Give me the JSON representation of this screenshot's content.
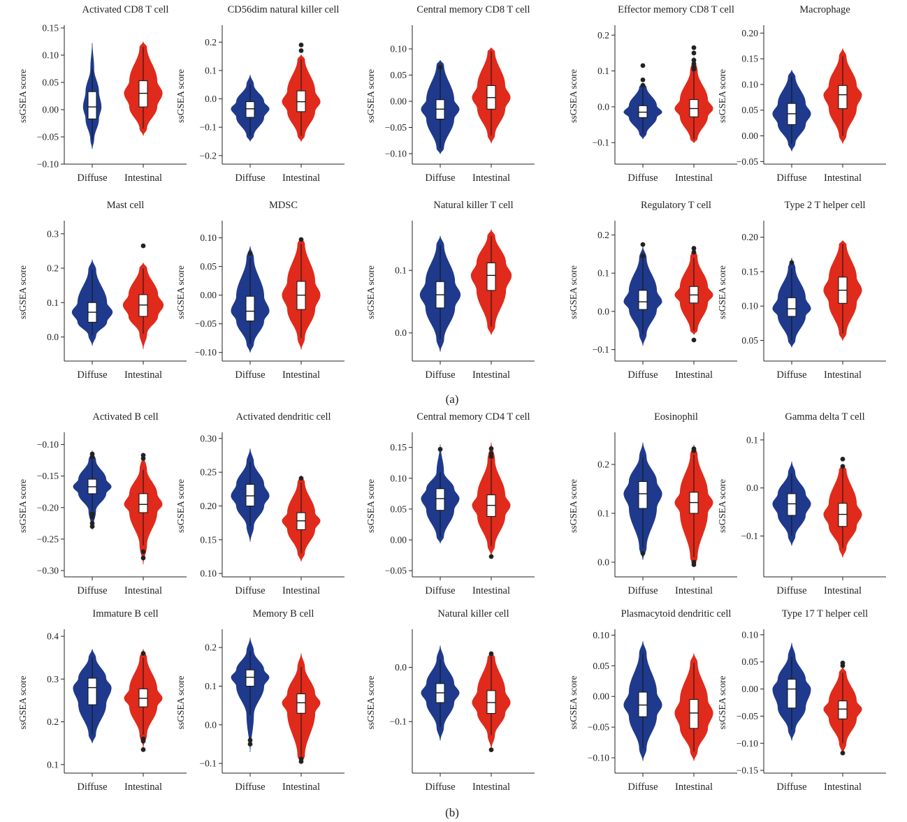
{
  "figure": {
    "panel_labels": [
      "(a)",
      "(b)"
    ],
    "colors": {
      "diffuse": "#1f3a8c",
      "intestinal": "#e02a1b",
      "box": "#ffffff",
      "axis": "#222222"
    }
  },
  "chart_data": [
    {
      "type": "violin",
      "title": "Activated CD8 T cell",
      "ylabel": "ssGSEA score",
      "categories": [
        "Diffuse",
        "Intestinal"
      ],
      "ylim": [
        -0.1,
        0.15
      ],
      "yticks": [
        -0.1,
        -0.05,
        0.0,
        0.05,
        0.1,
        0.15
      ],
      "ytick_labels": [
        "−0.10",
        "−0.05",
        "0.00",
        "0.05",
        "0.10",
        "0.15"
      ],
      "series": [
        {
          "min": -0.055,
          "q1": -0.017,
          "median": 0.005,
          "q3": 0.033,
          "max": 0.075,
          "vmin": -0.072,
          "vmax": 0.122,
          "wmax": 0.4,
          "outliers": []
        },
        {
          "min": -0.035,
          "q1": 0.005,
          "median": 0.03,
          "q3": 0.053,
          "max": 0.115,
          "vmin": -0.047,
          "vmax": 0.124,
          "wmax": 0.85,
          "outliers": []
        }
      ]
    },
    {
      "type": "violin",
      "title": "CD56dim natural killer cell",
      "ylabel": "ssGSEA score",
      "categories": [
        "Diffuse",
        "Intestinal"
      ],
      "ylim": [
        -0.23,
        0.25
      ],
      "yticks": [
        -0.2,
        -0.1,
        0.0,
        0.1,
        0.2
      ],
      "ytick_labels": [
        "−0.2",
        "−0.1",
        "0.0",
        "0.1",
        "0.2"
      ],
      "series": [
        {
          "min": -0.13,
          "q1": -0.065,
          "median": -0.035,
          "q3": -0.01,
          "max": 0.05,
          "vmin": -0.15,
          "vmax": 0.085,
          "wmax": 0.85,
          "outliers": []
        },
        {
          "min": -0.13,
          "q1": -0.045,
          "median": -0.01,
          "q3": 0.028,
          "max": 0.14,
          "vmin": -0.15,
          "vmax": 0.155,
          "wmax": 0.85,
          "outliers": [
            0.17,
            0.19
          ]
        }
      ]
    },
    {
      "type": "violin",
      "title": "Central memory CD8 T cell",
      "ylabel": "ssGSEA score",
      "categories": [
        "Diffuse",
        "Intestinal"
      ],
      "ylim": [
        -0.12,
        0.14
      ],
      "yticks": [
        -0.1,
        -0.05,
        0.0,
        0.05,
        0.1
      ],
      "ytick_labels": [
        "−0.10",
        "−0.05",
        "0.00",
        "0.05",
        "0.10"
      ],
      "series": [
        {
          "min": -0.09,
          "q1": -0.034,
          "median": -0.015,
          "q3": 0.003,
          "max": 0.07,
          "vmin": -0.1,
          "vmax": 0.078,
          "wmax": 0.85,
          "outliers": [
            0.065
          ]
        },
        {
          "min": -0.065,
          "q1": -0.015,
          "median": 0.007,
          "q3": 0.03,
          "max": 0.095,
          "vmin": -0.08,
          "vmax": 0.102,
          "wmax": 0.85,
          "outliers": []
        }
      ]
    },
    {
      "type": "violin",
      "title": "Effector memory CD8 T cell",
      "ylabel": "ssGSEA score",
      "categories": [
        "Diffuse",
        "Intestinal"
      ],
      "ylim": [
        -0.16,
        0.22
      ],
      "yticks": [
        -0.1,
        0.0,
        0.1,
        0.2
      ],
      "ytick_labels": [
        "−0.1",
        "0.0",
        "0.1",
        "0.2"
      ],
      "series": [
        {
          "min": -0.075,
          "q1": -0.03,
          "median": -0.015,
          "q3": 0.003,
          "max": 0.055,
          "vmin": -0.09,
          "vmax": 0.065,
          "wmax": 0.85,
          "outliers": [
            0.06,
            0.075,
            0.115
          ]
        },
        {
          "min": -0.09,
          "q1": -0.028,
          "median": -0.005,
          "q3": 0.02,
          "max": 0.1,
          "vmin": -0.1,
          "vmax": 0.14,
          "wmax": 0.85,
          "outliers": [
            0.105,
            0.11,
            0.12,
            0.13,
            0.15,
            0.165
          ]
        }
      ]
    },
    {
      "type": "violin",
      "title": "Macrophage",
      "ylabel": "ssGSEA score",
      "categories": [
        "Diffuse",
        "Intestinal"
      ],
      "ylim": [
        -0.055,
        0.21
      ],
      "yticks": [
        -0.05,
        0.0,
        0.05,
        0.1,
        0.15,
        0.2
      ],
      "ytick_labels": [
        "−0.05",
        "0.00",
        "0.05",
        "0.10",
        "0.15",
        "0.20"
      ],
      "series": [
        {
          "min": -0.015,
          "q1": 0.022,
          "median": 0.043,
          "q3": 0.063,
          "max": 0.115,
          "vmin": -0.03,
          "vmax": 0.128,
          "wmax": 0.85,
          "outliers": []
        },
        {
          "min": 0.0,
          "q1": 0.053,
          "median": 0.08,
          "q3": 0.098,
          "max": 0.155,
          "vmin": -0.015,
          "vmax": 0.17,
          "wmax": 0.85,
          "outliers": []
        }
      ]
    },
    {
      "type": "violin",
      "title": "Mast cell",
      "ylabel": "ssGSEA score",
      "categories": [
        "Diffuse",
        "Intestinal"
      ],
      "ylim": [
        -0.07,
        0.33
      ],
      "yticks": [
        0.0,
        0.1,
        0.2,
        0.3
      ],
      "ytick_labels": [
        "0.0",
        "0.1",
        "0.2",
        "0.3"
      ],
      "series": [
        {
          "min": 0.005,
          "q1": 0.043,
          "median": 0.072,
          "q3": 0.1,
          "max": 0.195,
          "vmin": -0.025,
          "vmax": 0.225,
          "wmax": 0.9,
          "outliers": []
        },
        {
          "min": 0.01,
          "q1": 0.06,
          "median": 0.093,
          "q3": 0.123,
          "max": 0.2,
          "vmin": -0.035,
          "vmax": 0.215,
          "wmax": 0.9,
          "outliers": [
            0.265
          ]
        }
      ]
    },
    {
      "type": "violin",
      "title": "MDSC",
      "ylabel": "ssGSEA score",
      "categories": [
        "Diffuse",
        "Intestinal"
      ],
      "ylim": [
        -0.115,
        0.125
      ],
      "yticks": [
        -0.1,
        -0.05,
        0.0,
        0.05,
        0.1
      ],
      "ytick_labels": [
        "−0.10",
        "−0.05",
        "0.00",
        "0.05",
        "0.10"
      ],
      "series": [
        {
          "min": -0.085,
          "q1": -0.045,
          "median": -0.028,
          "q3": -0.002,
          "max": 0.065,
          "vmin": -0.1,
          "vmax": 0.085,
          "wmax": 0.85,
          "outliers": [
            0.073
          ]
        },
        {
          "min": -0.075,
          "q1": -0.025,
          "median": 0.0,
          "q3": 0.024,
          "max": 0.09,
          "vmin": -0.095,
          "vmax": 0.1,
          "wmax": 0.85,
          "outliers": [
            0.097
          ]
        }
      ]
    },
    {
      "type": "violin",
      "title": "Natural killer T cell",
      "ylabel": "ssGSEA score",
      "categories": [
        "Diffuse",
        "Intestinal"
      ],
      "ylim": [
        -0.045,
        0.175
      ],
      "yticks": [
        0.0,
        0.1
      ],
      "ytick_labels": [
        "0.0",
        "0.1"
      ],
      "series": [
        {
          "min": -0.01,
          "q1": 0.04,
          "median": 0.061,
          "q3": 0.082,
          "max": 0.14,
          "vmin": -0.03,
          "vmax": 0.155,
          "wmax": 0.9,
          "outliers": []
        },
        {
          "min": 0.01,
          "q1": 0.068,
          "median": 0.092,
          "q3": 0.112,
          "max": 0.155,
          "vmin": -0.003,
          "vmax": 0.165,
          "wmax": 0.9,
          "outliers": []
        }
      ]
    },
    {
      "type": "violin",
      "title": "Regulatory T cell",
      "ylabel": "ssGSEA score",
      "categories": [
        "Diffuse",
        "Intestinal"
      ],
      "ylim": [
        -0.13,
        0.23
      ],
      "yticks": [
        -0.1,
        0.0,
        0.1,
        0.2
      ],
      "ytick_labels": [
        "−0.1",
        "0.0",
        "0.1",
        "0.2"
      ],
      "series": [
        {
          "min": -0.06,
          "q1": 0.005,
          "median": 0.025,
          "q3": 0.055,
          "max": 0.14,
          "vmin": -0.09,
          "vmax": 0.17,
          "wmax": 0.85,
          "outliers": [
            0.145,
            0.175
          ]
        },
        {
          "min": -0.05,
          "q1": 0.022,
          "median": 0.043,
          "q3": 0.065,
          "max": 0.14,
          "vmin": -0.06,
          "vmax": 0.17,
          "wmax": 0.85,
          "outliers": [
            0.155,
            0.165,
            -0.075
          ]
        }
      ]
    },
    {
      "type": "violin",
      "title": "Type 2 T helper cell",
      "ylabel": "ssGSEA score",
      "categories": [
        "Diffuse",
        "Intestinal"
      ],
      "ylim": [
        0.02,
        0.22
      ],
      "yticks": [
        0.05,
        0.1,
        0.15,
        0.2
      ],
      "ytick_labels": [
        "0.05",
        "0.10",
        "0.15",
        "0.20"
      ],
      "series": [
        {
          "min": 0.05,
          "q1": 0.085,
          "median": 0.096,
          "q3": 0.112,
          "max": 0.155,
          "vmin": 0.04,
          "vmax": 0.17,
          "wmax": 0.85,
          "outliers": [
            0.163
          ]
        },
        {
          "min": 0.06,
          "q1": 0.104,
          "median": 0.123,
          "q3": 0.142,
          "max": 0.19,
          "vmin": 0.05,
          "vmax": 0.195,
          "wmax": 0.85,
          "outliers": []
        }
      ]
    },
    {
      "type": "violin",
      "title": "Activated B cell",
      "ylabel": "ssGSEA score",
      "categories": [
        "Diffuse",
        "Intestinal"
      ],
      "ylim": [
        -0.31,
        -0.085
      ],
      "yticks": [
        -0.3,
        -0.25,
        -0.2,
        -0.15,
        -0.1
      ],
      "ytick_labels": [
        "−0.30",
        "−0.25",
        "−0.20",
        "−0.15",
        "−0.10"
      ],
      "series": [
        {
          "min": -0.205,
          "q1": -0.178,
          "median": -0.167,
          "q3": -0.155,
          "max": -0.125,
          "vmin": -0.235,
          "vmax": -0.11,
          "wmax": 0.85,
          "outliers": [
            -0.115,
            -0.12,
            -0.21,
            -0.215,
            -0.225,
            -0.23
          ]
        },
        {
          "min": -0.26,
          "q1": -0.208,
          "median": -0.195,
          "q3": -0.178,
          "max": -0.14,
          "vmin": -0.29,
          "vmax": -0.115,
          "wmax": 0.85,
          "outliers": [
            -0.117,
            -0.122,
            -0.27,
            -0.28
          ]
        }
      ]
    },
    {
      "type": "violin",
      "title": "Activated dendritic cell",
      "ylabel": "ssGSEA score",
      "categories": [
        "Diffuse",
        "Intestinal"
      ],
      "ylim": [
        0.095,
        0.305
      ],
      "yticks": [
        0.1,
        0.15,
        0.2,
        0.25,
        0.3
      ],
      "ytick_labels": [
        "0.10",
        "0.15",
        "0.20",
        "0.25",
        "0.30"
      ],
      "series": [
        {
          "min": 0.17,
          "q1": 0.2,
          "median": 0.215,
          "q3": 0.232,
          "max": 0.265,
          "vmin": 0.147,
          "vmax": 0.285,
          "wmax": 0.85,
          "outliers": []
        },
        {
          "min": 0.13,
          "q1": 0.165,
          "median": 0.178,
          "q3": 0.19,
          "max": 0.235,
          "vmin": 0.118,
          "vmax": 0.245,
          "wmax": 0.85,
          "outliers": [
            0.241
          ]
        }
      ]
    },
    {
      "type": "violin",
      "title": "Central memory CD4 T cell",
      "ylabel": "ssGSEA score",
      "categories": [
        "Diffuse",
        "Intestinal"
      ],
      "ylim": [
        -0.06,
        0.17
      ],
      "yticks": [
        -0.05,
        0.0,
        0.05,
        0.1,
        0.15
      ],
      "ytick_labels": [
        "−0.05",
        "0.00",
        "0.05",
        "0.10",
        "0.15"
      ],
      "series": [
        {
          "min": 0.005,
          "q1": 0.048,
          "median": 0.067,
          "q3": 0.083,
          "max": 0.11,
          "vmin": -0.005,
          "vmax": 0.155,
          "wmax": 0.85,
          "outliers": [
            0.147
          ]
        },
        {
          "min": -0.01,
          "q1": 0.038,
          "median": 0.056,
          "q3": 0.073,
          "max": 0.13,
          "vmin": -0.025,
          "vmax": 0.158,
          "wmax": 0.85,
          "outliers": [
            0.135,
            0.14,
            0.148,
            -0.027
          ]
        }
      ]
    },
    {
      "type": "violin",
      "title": "Eosinophil",
      "ylabel": "ssGSEA score",
      "categories": [
        "Diffuse",
        "Intestinal"
      ],
      "ylim": [
        -0.03,
        0.26
      ],
      "yticks": [
        0.0,
        0.1,
        0.2
      ],
      "ytick_labels": [
        "0.0",
        "0.1",
        "0.2"
      ],
      "series": [
        {
          "min": 0.03,
          "q1": 0.11,
          "median": 0.14,
          "q3": 0.165,
          "max": 0.215,
          "vmin": 0.005,
          "vmax": 0.245,
          "wmax": 0.85,
          "outliers": [
            0.018
          ]
        },
        {
          "min": 0.01,
          "q1": 0.1,
          "median": 0.122,
          "q3": 0.143,
          "max": 0.22,
          "vmin": -0.01,
          "vmax": 0.24,
          "wmax": 0.85,
          "outliers": [
            0.228,
            0.232,
            0.0,
            -0.005
          ]
        }
      ]
    },
    {
      "type": "violin",
      "title": "Gamma delta T cell",
      "ylabel": "ssGSEA score",
      "categories": [
        "Diffuse",
        "Intestinal"
      ],
      "ylim": [
        -0.185,
        0.11
      ],
      "yticks": [
        -0.1,
        0.0,
        0.1
      ],
      "ytick_labels": [
        "−0.1",
        "0.0",
        "0.1"
      ],
      "series": [
        {
          "min": -0.1,
          "q1": -0.057,
          "median": -0.033,
          "q3": -0.012,
          "max": 0.03,
          "vmin": -0.12,
          "vmax": 0.055,
          "wmax": 0.85,
          "outliers": []
        },
        {
          "min": -0.125,
          "q1": -0.08,
          "median": -0.055,
          "q3": -0.032,
          "max": 0.04,
          "vmin": -0.145,
          "vmax": 0.045,
          "wmax": 0.85,
          "outliers": [
            0.045,
            0.06
          ]
        }
      ]
    },
    {
      "type": "violin",
      "title": "Immature B cell",
      "ylabel": "ssGSEA score",
      "categories": [
        "Diffuse",
        "Intestinal"
      ],
      "ylim": [
        0.08,
        0.41
      ],
      "yticks": [
        0.1,
        0.2,
        0.3,
        0.4
      ],
      "ytick_labels": [
        "0.1",
        "0.2",
        "0.3",
        "0.4"
      ],
      "series": [
        {
          "min": 0.17,
          "q1": 0.24,
          "median": 0.28,
          "q3": 0.302,
          "max": 0.35,
          "vmin": 0.15,
          "vmax": 0.37,
          "wmax": 0.85,
          "outliers": []
        },
        {
          "min": 0.17,
          "q1": 0.235,
          "median": 0.255,
          "q3": 0.277,
          "max": 0.35,
          "vmin": 0.14,
          "vmax": 0.37,
          "wmax": 0.85,
          "outliers": [
            0.36,
            0.16,
            0.155,
            0.135
          ]
        }
      ]
    },
    {
      "type": "violin",
      "title": "Memory B cell",
      "ylabel": "ssGSEA score",
      "categories": [
        "Diffuse",
        "Intestinal"
      ],
      "ylim": [
        -0.125,
        0.24
      ],
      "yticks": [
        -0.1,
        0.0,
        0.1,
        0.2
      ],
      "ytick_labels": [
        "−0.1",
        "0.0",
        "0.1",
        "0.2"
      ],
      "series": [
        {
          "min": 0.025,
          "q1": 0.1,
          "median": 0.123,
          "q3": 0.142,
          "max": 0.19,
          "vmin": -0.07,
          "vmax": 0.225,
          "wmax": 0.85,
          "outliers": [
            -0.04,
            -0.05
          ]
        },
        {
          "min": -0.08,
          "q1": 0.03,
          "median": 0.057,
          "q3": 0.08,
          "max": 0.15,
          "vmin": -0.1,
          "vmax": 0.185,
          "wmax": 0.85,
          "outliers": [
            -0.088,
            -0.095
          ]
        }
      ]
    },
    {
      "type": "violin",
      "title": "Natural killer cell",
      "ylabel": "ssGSEA score",
      "categories": [
        "Diffuse",
        "Intestinal"
      ],
      "ylim": [
        -0.195,
        0.065
      ],
      "yticks": [
        -0.1,
        0.0
      ],
      "ytick_labels": [
        "−0.1",
        "0.0"
      ],
      "series": [
        {
          "min": -0.11,
          "q1": -0.065,
          "median": -0.047,
          "q3": -0.03,
          "max": 0.015,
          "vmin": -0.135,
          "vmax": 0.04,
          "wmax": 0.85,
          "outliers": []
        },
        {
          "min": -0.125,
          "q1": -0.085,
          "median": -0.065,
          "q3": -0.043,
          "max": 0.02,
          "vmin": -0.15,
          "vmax": 0.025,
          "wmax": 0.85,
          "outliers": [
            0.025,
            -0.152
          ]
        }
      ]
    },
    {
      "type": "violin",
      "title": "Plasmacytoid dendritic cell",
      "ylabel": "ssGSEA score",
      "categories": [
        "Diffuse",
        "Intestinal"
      ],
      "ylim": [
        -0.125,
        0.105
      ],
      "yticks": [
        -0.1,
        -0.05,
        0.0,
        0.05,
        0.1
      ],
      "ytick_labels": [
        "−0.10",
        "−0.05",
        "0.00",
        "0.05",
        "0.10"
      ],
      "series": [
        {
          "min": -0.085,
          "q1": -0.033,
          "median": -0.014,
          "q3": 0.007,
          "max": 0.07,
          "vmin": -0.105,
          "vmax": 0.09,
          "wmax": 0.85,
          "outliers": []
        },
        {
          "min": -0.09,
          "q1": -0.052,
          "median": -0.027,
          "q3": -0.005,
          "max": 0.055,
          "vmin": -0.105,
          "vmax": 0.07,
          "wmax": 0.85,
          "outliers": []
        }
      ]
    },
    {
      "type": "violin",
      "title": "Type 17 T helper cell",
      "ylabel": "ssGSEA score",
      "categories": [
        "Diffuse",
        "Intestinal"
      ],
      "ylim": [
        -0.155,
        0.105
      ],
      "yticks": [
        -0.15,
        -0.1,
        -0.05,
        0.0,
        0.05,
        0.1
      ],
      "ytick_labels": [
        "−0.15",
        "−0.10",
        "−0.05",
        "0.00",
        "0.05",
        "0.10"
      ],
      "series": [
        {
          "min": -0.075,
          "q1": -0.035,
          "median": 0.0,
          "q3": 0.018,
          "max": 0.06,
          "vmin": -0.095,
          "vmax": 0.085,
          "wmax": 0.85,
          "outliers": []
        },
        {
          "min": -0.1,
          "q1": -0.055,
          "median": -0.037,
          "q3": -0.022,
          "max": 0.03,
          "vmin": -0.12,
          "vmax": 0.04,
          "wmax": 0.85,
          "outliers": [
            0.043,
            0.048,
            -0.118
          ]
        }
      ]
    }
  ]
}
